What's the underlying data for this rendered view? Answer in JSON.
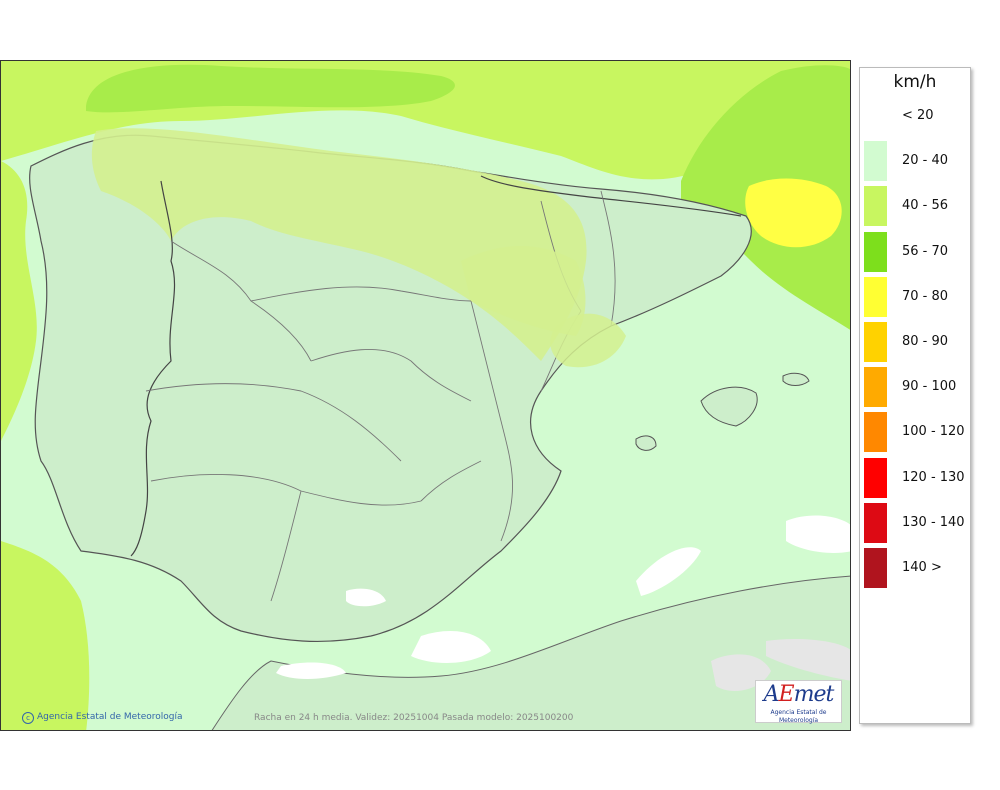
{
  "legend": {
    "unit": "km/h",
    "items": [
      {
        "label": "< 20",
        "color": "#ffffff"
      },
      {
        "label": "20 - 40",
        "color": "#d2fbd0"
      },
      {
        "label": "40 - 56",
        "color": "#c8f660"
      },
      {
        "label": "56 - 70",
        "color": "#7ddf1c"
      },
      {
        "label": "70 - 80",
        "color": "#ffff33"
      },
      {
        "label": "80 - 90",
        "color": "#ffd200"
      },
      {
        "label": "90 - 100",
        "color": "#ffaa00"
      },
      {
        "label": "100 - 120",
        "color": "#ff8800"
      },
      {
        "label": "120 - 130",
        "color": "#ff0000"
      },
      {
        "label": "130 - 140",
        "color": "#dd0a14"
      },
      {
        "label": "140 >",
        "color": "#b0141e"
      }
    ]
  },
  "footer": {
    "credit": "Agencia Estatal de Meteorología",
    "caption": "Racha en 24 h media. Validez: 20251004 Pasada modelo: 2025100200"
  },
  "logo": {
    "mark_a": "A",
    "mark_e": "E",
    "mark_rest": "met",
    "subtitle": "Agencia Estatal de Meteorología"
  }
}
